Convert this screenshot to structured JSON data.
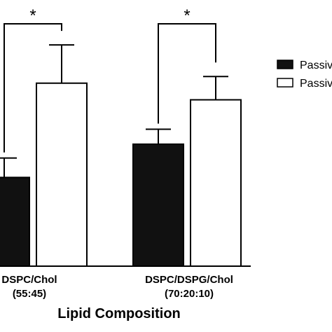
{
  "chart_data": {
    "type": "bar",
    "title": "",
    "xlabel": "Lipid Composition",
    "ylabel": "",
    "categories": [
      [
        "DSPC/Chol",
        "(55:45)"
      ],
      [
        "DSPC/DSPG/Chol",
        "(70:20:10)"
      ]
    ],
    "series": [
      {
        "name": "Passiv",
        "fill": "#111111",
        "values": [
          1.6,
          2.2
        ],
        "errors": [
          0.35,
          0.27
        ]
      },
      {
        "name": "Passiv",
        "fill": "#ffffff",
        "values": [
          3.3,
          3.0
        ],
        "errors": [
          0.69,
          0.42
        ]
      }
    ],
    "significance": [
      {
        "category": 0,
        "label": "*"
      },
      {
        "category": 1,
        "label": "*"
      }
    ],
    "ylim": [
      0,
      4.8
    ],
    "legend": "top-right",
    "grid": false
  }
}
